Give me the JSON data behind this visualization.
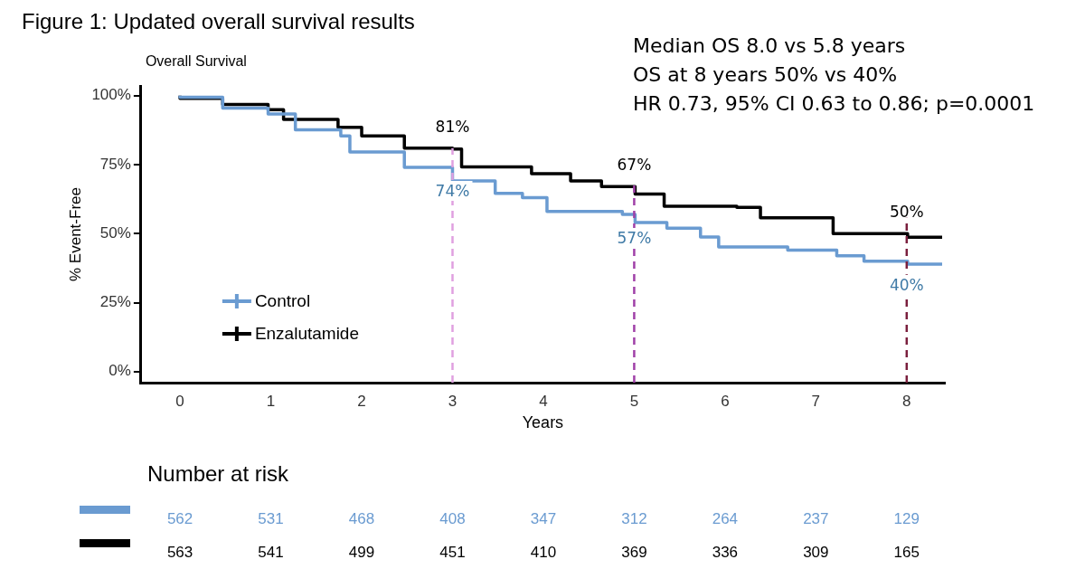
{
  "chart_data": {
    "type": "step",
    "title": "Figure 1: Updated overall survival results",
    "subtitle": "Overall Survival",
    "xlabel": "Years",
    "ylabel": "% Event-Free",
    "xlim": [
      -0.43,
      8.42
    ],
    "xticks": [
      0,
      1,
      2,
      3,
      4,
      5,
      6,
      7,
      8
    ],
    "ylim": [
      -4,
      103.5
    ],
    "yticks": [
      {
        "value": 0,
        "label": "0%"
      },
      {
        "value": 25,
        "label": "25%"
      },
      {
        "value": 50,
        "label": "50%"
      },
      {
        "value": 75,
        "label": "75%"
      },
      {
        "value": 100,
        "label": "100%"
      }
    ],
    "legend": "bottom left",
    "series": [
      {
        "name": "Control",
        "color": "#6a9bd1",
        "x": [
          0,
          0.47,
          0.97,
          1.27,
          1.77,
          1.87,
          2.47,
          3.0,
          3.47,
          3.77,
          4.04,
          4.87,
          5.01,
          5.36,
          5.73,
          5.93,
          6.69,
          7.23,
          7.53,
          8.01,
          8.39
        ],
        "values": [
          100,
          99.4,
          95.5,
          93.3,
          87.6,
          85.4,
          79.6,
          74,
          69.1,
          64.6,
          63,
          58,
          57,
          54,
          52,
          48.8,
          45.2,
          44,
          42,
          40,
          38.9
        ]
      },
      {
        "name": "Enzalutamide",
        "color": "#000000",
        "x": [
          0,
          0.47,
          0.97,
          1.14,
          1.74,
          2.0,
          2.47,
          3.0,
          3.1,
          3.87,
          4.3,
          4.64,
          5.01,
          5.33,
          6.13,
          6.39,
          6.93,
          7.19,
          8.01,
          8.39
        ],
        "values": [
          100,
          99,
          96.8,
          94.9,
          91.4,
          88.5,
          85.4,
          81,
          80.6,
          74.2,
          71.7,
          69.1,
          67,
          64.3,
          59.9,
          59.5,
          55.7,
          55.7,
          50,
          48.7
        ]
      }
    ],
    "ref_lines": [
      {
        "axis": "x",
        "value": 3,
        "color": "#e0a0e0",
        "line_style": "dashed"
      },
      {
        "axis": "x",
        "value": 5,
        "color": "#a040a8",
        "line_style": "dashed"
      },
      {
        "axis": "x",
        "value": 8,
        "color": "#7a1f3d",
        "line_style": "dashed"
      }
    ],
    "annotations": [
      "Median OS 8.0 vs 5.8 years",
      "OS at 8 years 50% vs 40%",
      "HR 0.73, 95% CI 0.63 to 0.86; p=0.0001",
      "Number at risk",
      {
        "text": "81%",
        "x": 3,
        "y": 81
      },
      {
        "text": "74%",
        "x": 3,
        "y": 74
      },
      {
        "text": "67%",
        "x": 5,
        "y": 67
      },
      {
        "text": "57%",
        "x": 5,
        "y": 57
      },
      {
        "text": "50%",
        "x": 8,
        "y": 50
      },
      {
        "text": "40%",
        "x": 8,
        "y": 40
      },
      "562",
      "531",
      "468",
      "408",
      "347",
      "312",
      "264",
      "237",
      "129",
      "563",
      "541",
      "499",
      "451",
      "410",
      "369",
      "336",
      "309",
      "165"
    ]
  }
}
